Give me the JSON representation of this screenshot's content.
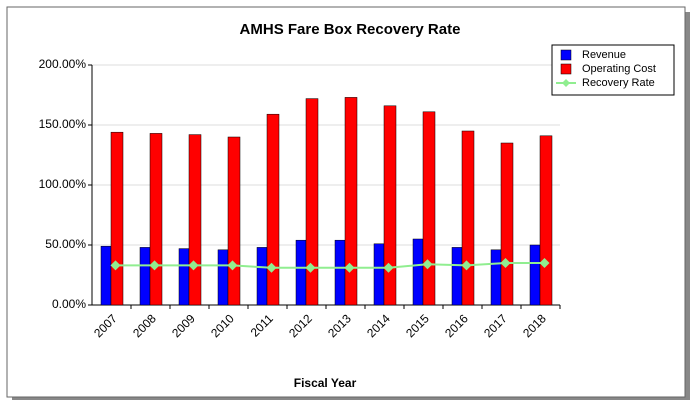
{
  "chart_data": {
    "type": "bar",
    "title": "AMHS Fare Box Recovery Rate",
    "x_label": "Fiscal Year",
    "categories": [
      "2007",
      "2008",
      "2009",
      "2010",
      "2011",
      "2012",
      "2013",
      "2014",
      "2015",
      "2016",
      "2017",
      "2018"
    ],
    "series": [
      {
        "name": "Revenue",
        "color": "#0000ff",
        "values": [
          49,
          48,
          47,
          46,
          48,
          54,
          54,
          51,
          55,
          48,
          46,
          50
        ]
      },
      {
        "name": "Operating Cost",
        "color": "#ff0000",
        "values": [
          144,
          143,
          142,
          140,
          159,
          172,
          173,
          166,
          161,
          145,
          135,
          141
        ]
      },
      {
        "name": "Recovery Rate",
        "type": "line",
        "color": "#90ee90",
        "values": [
          33,
          33,
          33,
          33,
          31,
          31,
          31,
          31,
          34,
          33,
          35,
          35
        ]
      }
    ],
    "ylim": [
      0,
      200
    ],
    "yticks": [
      {
        "value": 0,
        "label": "0.00%"
      },
      {
        "value": 50,
        "label": "50.00%"
      },
      {
        "value": 100,
        "label": "100.00%"
      },
      {
        "value": 150,
        "label": "150.00%"
      },
      {
        "value": 200,
        "label": "200.00%"
      }
    ],
    "grid": true,
    "legend": "top-right"
  }
}
